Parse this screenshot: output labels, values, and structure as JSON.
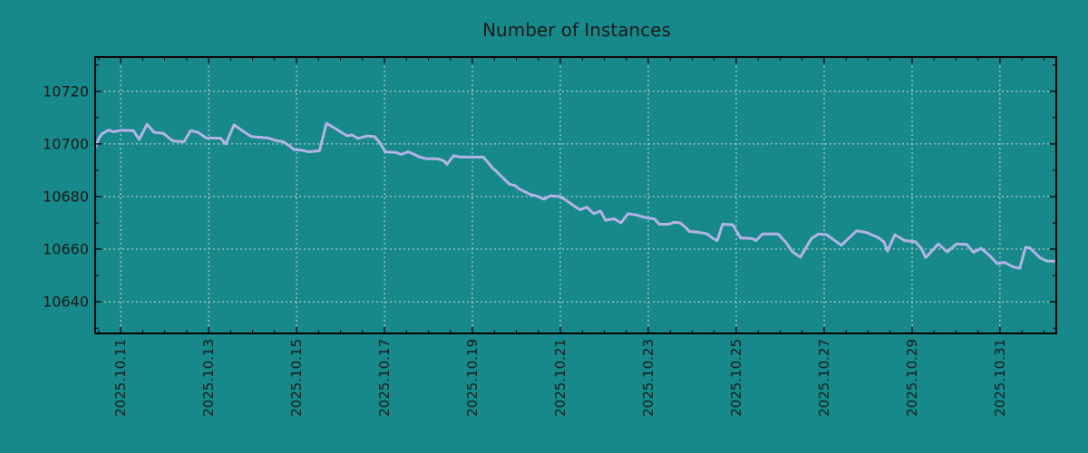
{
  "chart_data": {
    "type": "line",
    "title": "Number of Instances",
    "legend": "none",
    "grid": "dashed major gridlines, both axes",
    "colors": {
      "background": "#17898a",
      "line": "#b3b3e6",
      "grid": "#d9d9d9",
      "axis": "#000000",
      "text": "#1a1a1a"
    },
    "x_axis": {
      "label": "",
      "time_origin": "days since 2025.10.10 00:00",
      "visible_range_days": [
        0.42,
        22.28
      ],
      "minor_tick_step_days": 0.5,
      "tick_label_rotation_deg": 90,
      "ticks": [
        {
          "day": 1,
          "label": "2025.10.11"
        },
        {
          "day": 3,
          "label": "2025.10.13"
        },
        {
          "day": 5,
          "label": "2025.10.15"
        },
        {
          "day": 7,
          "label": "2025.10.17"
        },
        {
          "day": 9,
          "label": "2025.10.19"
        },
        {
          "day": 11,
          "label": "2025.10.21"
        },
        {
          "day": 13,
          "label": "2025.10.23"
        },
        {
          "day": 15,
          "label": "2025.10.25"
        },
        {
          "day": 17,
          "label": "2025.10.27"
        },
        {
          "day": 19,
          "label": "2025.10.29"
        },
        {
          "day": 21,
          "label": "2025.10.31"
        }
      ]
    },
    "y_axis": {
      "label": "",
      "range": [
        10628,
        10733
      ],
      "ticks": [
        10640,
        10660,
        10680,
        10700,
        10720
      ],
      "minor_tick_step": 10
    },
    "series": [
      {
        "name": "instances",
        "points": [
          [
            0.42,
            10698.5
          ],
          [
            0.5,
            10702.0
          ],
          [
            0.57,
            10703.8
          ],
          [
            0.73,
            10705.3
          ],
          [
            0.84,
            10704.6
          ],
          [
            1.0,
            10705.2
          ],
          [
            1.29,
            10705.0
          ],
          [
            1.42,
            10701.7
          ],
          [
            1.6,
            10707.5
          ],
          [
            1.76,
            10704.4
          ],
          [
            1.97,
            10704.0
          ],
          [
            2.18,
            10701.2
          ],
          [
            2.3,
            10701.0
          ],
          [
            2.44,
            10700.8
          ],
          [
            2.59,
            10705.0
          ],
          [
            2.75,
            10704.5
          ],
          [
            2.94,
            10702.3
          ],
          [
            3.27,
            10702.2
          ],
          [
            3.39,
            10700.0
          ],
          [
            3.58,
            10707.2
          ],
          [
            3.78,
            10704.9
          ],
          [
            3.97,
            10702.8
          ],
          [
            4.34,
            10702.3
          ],
          [
            4.55,
            10701.2
          ],
          [
            4.69,
            10700.9
          ],
          [
            4.86,
            10699.0
          ],
          [
            4.94,
            10697.9
          ],
          [
            5.12,
            10697.6
          ],
          [
            5.27,
            10697.0
          ],
          [
            5.52,
            10697.4
          ],
          [
            5.68,
            10707.8
          ],
          [
            5.89,
            10705.8
          ],
          [
            6.03,
            10704.3
          ],
          [
            6.15,
            10703.1
          ],
          [
            6.26,
            10703.4
          ],
          [
            6.4,
            10702.1
          ],
          [
            6.61,
            10703.0
          ],
          [
            6.77,
            10702.8
          ],
          [
            6.87,
            10701.0
          ],
          [
            7.02,
            10697.0
          ],
          [
            7.27,
            10696.8
          ],
          [
            7.37,
            10696.0
          ],
          [
            7.54,
            10697.0
          ],
          [
            7.68,
            10696.0
          ],
          [
            7.8,
            10695.0
          ],
          [
            7.95,
            10694.4
          ],
          [
            8.22,
            10694.3
          ],
          [
            8.36,
            10693.5
          ],
          [
            8.42,
            10692.2
          ],
          [
            8.57,
            10695.5
          ],
          [
            8.72,
            10695.0
          ],
          [
            9.25,
            10695.0
          ],
          [
            9.45,
            10691.0
          ],
          [
            9.56,
            10689.3
          ],
          [
            9.7,
            10687.0
          ],
          [
            9.84,
            10684.7
          ],
          [
            9.97,
            10684.2
          ],
          [
            10.05,
            10683.0
          ],
          [
            10.18,
            10681.9
          ],
          [
            10.32,
            10680.8
          ],
          [
            10.46,
            10680.2
          ],
          [
            10.63,
            10679.0
          ],
          [
            10.77,
            10680.3
          ],
          [
            11.0,
            10680.0
          ],
          [
            11.14,
            10678.5
          ],
          [
            11.29,
            10676.7
          ],
          [
            11.45,
            10675.0
          ],
          [
            11.6,
            10676.0
          ],
          [
            11.76,
            10673.5
          ],
          [
            11.91,
            10674.5
          ],
          [
            12.03,
            10671.0
          ],
          [
            12.22,
            10671.6
          ],
          [
            12.38,
            10670.0
          ],
          [
            12.54,
            10673.5
          ],
          [
            12.73,
            10673.0
          ],
          [
            12.94,
            10672.0
          ],
          [
            13.14,
            10671.5
          ],
          [
            13.25,
            10669.5
          ],
          [
            13.47,
            10669.5
          ],
          [
            13.58,
            10670.2
          ],
          [
            13.72,
            10670.0
          ],
          [
            13.84,
            10668.5
          ],
          [
            13.93,
            10666.8
          ],
          [
            14.13,
            10666.5
          ],
          [
            14.34,
            10665.8
          ],
          [
            14.48,
            10664.0
          ],
          [
            14.57,
            10663.3
          ],
          [
            14.69,
            10669.5
          ],
          [
            14.92,
            10669.3
          ],
          [
            15.1,
            10664.3
          ],
          [
            15.37,
            10664.0
          ],
          [
            15.45,
            10663.3
          ],
          [
            15.6,
            10665.8
          ],
          [
            15.95,
            10665.8
          ],
          [
            16.13,
            10662.6
          ],
          [
            16.28,
            10659.0
          ],
          [
            16.46,
            10657.0
          ],
          [
            16.71,
            10664.0
          ],
          [
            16.87,
            10665.8
          ],
          [
            17.06,
            10665.5
          ],
          [
            17.25,
            10663.2
          ],
          [
            17.39,
            10661.5
          ],
          [
            17.74,
            10667.0
          ],
          [
            17.97,
            10666.3
          ],
          [
            18.22,
            10664.5
          ],
          [
            18.36,
            10662.8
          ],
          [
            18.44,
            10659.3
          ],
          [
            18.61,
            10665.5
          ],
          [
            18.83,
            10663.3
          ],
          [
            19.08,
            10662.8
          ],
          [
            19.21,
            10660.3
          ],
          [
            19.31,
            10656.8
          ],
          [
            19.6,
            10662.0
          ],
          [
            19.8,
            10659.0
          ],
          [
            20.01,
            10662.0
          ],
          [
            20.24,
            10661.8
          ],
          [
            20.4,
            10658.8
          ],
          [
            20.57,
            10660.3
          ],
          [
            20.75,
            10657.8
          ],
          [
            20.94,
            10654.5
          ],
          [
            21.1,
            10655.0
          ],
          [
            21.31,
            10653.2
          ],
          [
            21.45,
            10652.8
          ],
          [
            21.58,
            10660.7
          ],
          [
            21.68,
            10660.5
          ],
          [
            21.91,
            10656.7
          ],
          [
            22.07,
            10655.5
          ],
          [
            22.28,
            10655.4
          ]
        ]
      }
    ]
  }
}
